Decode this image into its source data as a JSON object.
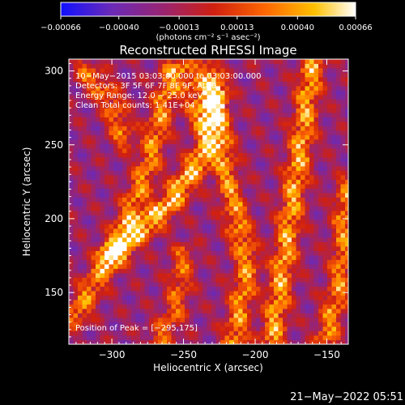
{
  "chart_data": {
    "type": "heatmap",
    "title": "Reconstructed RHESSI Image",
    "xlabel": "Heliocentric X (arcsec)",
    "ylabel": "Heliocentric Y (arcsec)",
    "xlim": [
      -330,
      -135
    ],
    "ylim": [
      115,
      308
    ],
    "xticks": [
      -300,
      -250,
      -200,
      -150
    ],
    "xtick_labels": [
      "−300",
      "−250",
      "−200",
      "−150"
    ],
    "yticks": [
      150,
      200,
      250,
      300
    ],
    "ytick_labels": [
      "150",
      "200",
      "250",
      "300"
    ],
    "colorbar": {
      "range": [
        -0.00066,
        0.00066
      ],
      "ticks": [
        -0.00066,
        -0.0004,
        -0.00013,
        0.00013,
        0.0004,
        0.00066
      ],
      "tick_labels": [
        "−0.00066",
        "−0.00040",
        "−0.00013",
        "0.00013",
        "0.00040",
        "0.00066"
      ],
      "unit_label": "(photons cm⁻² s⁻¹ asec⁻²)",
      "colormap": "rhessi-blue-purple-red-yellow-white"
    },
    "colormap_stops": [
      "#1010ff",
      "#6a2ab8",
      "#9a2470",
      "#d02010",
      "#ff6a00",
      "#ffc000",
      "#ffffff"
    ],
    "peak_position": [
      -295,
      175
    ],
    "ridges": [
      {
        "points": [
          [
            -300,
            175
          ],
          [
            -260,
            210
          ],
          [
            -235,
            245
          ],
          [
            -228,
            285
          ]
        ],
        "value": 0.00062
      },
      {
        "points": [
          [
            -325,
            135
          ],
          [
            -295,
            185
          ],
          [
            -275,
            235
          ],
          [
            -258,
            300
          ]
        ],
        "value": 0.0004
      },
      {
        "points": [
          [
            -215,
            115
          ],
          [
            -205,
            170
          ],
          [
            -218,
            220
          ],
          [
            -232,
            300
          ]
        ],
        "value": 0.00042
      },
      {
        "points": [
          [
            -188,
            118
          ],
          [
            -178,
            185
          ],
          [
            -168,
            250
          ],
          [
            -160,
            305
          ]
        ],
        "value": 0.0005
      },
      {
        "points": [
          [
            -150,
            120
          ],
          [
            -140,
            160
          ],
          [
            -136,
            220
          ]
        ],
        "value": 0.00038
      },
      {
        "points": [
          [
            -268,
            115
          ],
          [
            -255,
            140
          ],
          [
            -250,
            175
          ]
        ],
        "value": 0.00025
      },
      {
        "points": [
          [
            -318,
            300
          ],
          [
            -300,
            280
          ],
          [
            -292,
            255
          ]
        ],
        "value": 0.0003
      },
      {
        "points": [
          [
            -248,
            300
          ],
          [
            -240,
            270
          ]
        ],
        "value": 0.0002
      }
    ]
  },
  "annotations": {
    "time_range": "10−May−2015 03:03:00.000 to 03:03:00.000",
    "detectors": "Detectors: 3F 5F 6F 7F 8F 9F, Att 0",
    "energy_range": "Energy Range: 12.0 − 25.0 keV",
    "clean_counts": "Clean     Total counts: 1.41E+04",
    "peak_label": "Position of Peak = [−295,175]"
  },
  "footer": {
    "timestamp": "21−May−2022 05:51"
  }
}
